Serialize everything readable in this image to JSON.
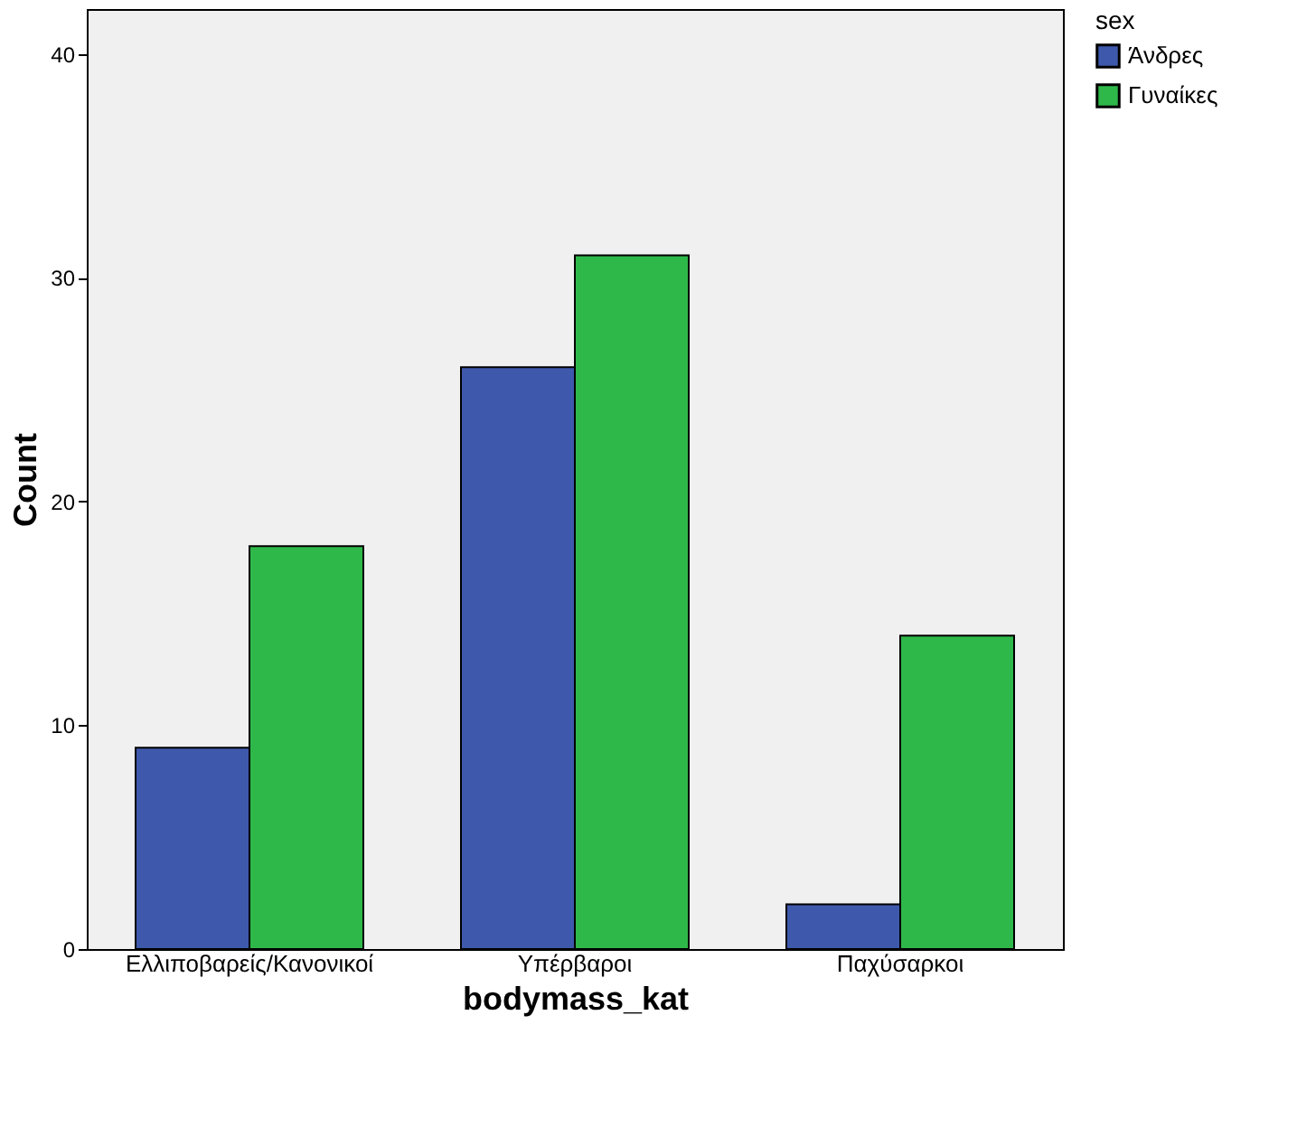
{
  "chart_data": {
    "type": "bar",
    "xlabel": "bodymass_kat",
    "ylabel": "Count",
    "legend_title": "sex",
    "categories": [
      "Ελλιποβαρείς/Κανονικοί",
      "Υπέρβαροι",
      "Παχύσαρκοι"
    ],
    "series": [
      {
        "name": "Άνδρες",
        "color": "#3e58ac",
        "values": [
          9,
          26,
          2
        ]
      },
      {
        "name": "Γυναίκες",
        "color": "#2fb84a",
        "values": [
          18,
          31,
          14
        ]
      }
    ],
    "ylim": [
      0,
      42
    ],
    "yticks": [
      0,
      10,
      20,
      30,
      40
    ],
    "grid": false,
    "legend": "top right"
  }
}
